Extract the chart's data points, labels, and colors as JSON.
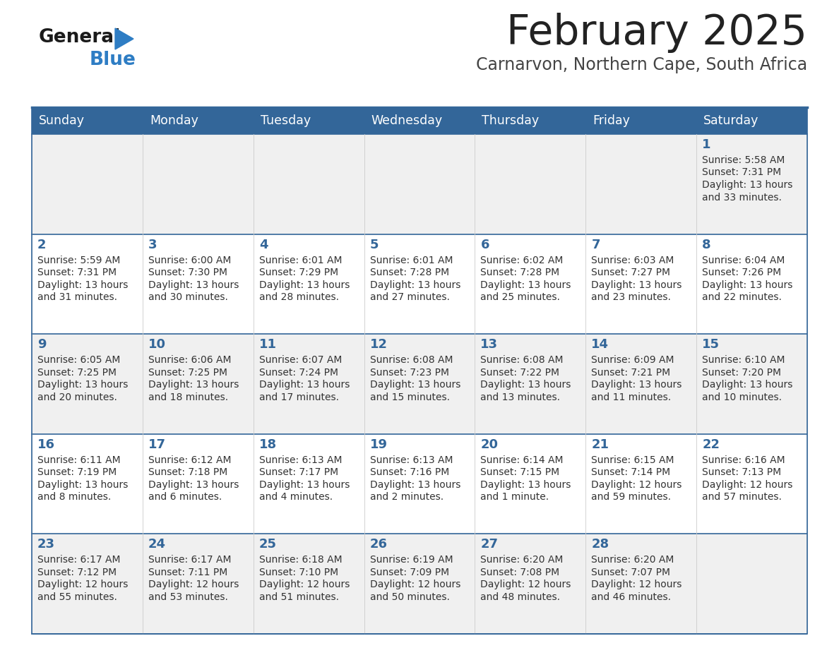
{
  "title": "February 2025",
  "subtitle": "Carnarvon, Northern Cape, South Africa",
  "header_bg": "#336699",
  "header_text": "#FFFFFF",
  "row_bg_odd": "#F0F0F0",
  "row_bg_even": "#FFFFFF",
  "day_number_color": "#336699",
  "cell_text_color": "#333333",
  "border_color": "#336699",
  "inner_border_color": "#CCCCCC",
  "days_of_week": [
    "Sunday",
    "Monday",
    "Tuesday",
    "Wednesday",
    "Thursday",
    "Friday",
    "Saturday"
  ],
  "title_color": "#222222",
  "subtitle_color": "#444444",
  "logo_general_color": "#1a1a1a",
  "logo_blue_color": "#2E7DC4",
  "calendar_data": [
    [
      null,
      null,
      null,
      null,
      null,
      null,
      {
        "day": "1",
        "sunrise": "5:58 AM",
        "sunset": "7:31 PM",
        "daylight_line1": "13 hours",
        "daylight_line2": "and 33 minutes."
      }
    ],
    [
      {
        "day": "2",
        "sunrise": "5:59 AM",
        "sunset": "7:31 PM",
        "daylight_line1": "13 hours",
        "daylight_line2": "and 31 minutes."
      },
      {
        "day": "3",
        "sunrise": "6:00 AM",
        "sunset": "7:30 PM",
        "daylight_line1": "13 hours",
        "daylight_line2": "and 30 minutes."
      },
      {
        "day": "4",
        "sunrise": "6:01 AM",
        "sunset": "7:29 PM",
        "daylight_line1": "13 hours",
        "daylight_line2": "and 28 minutes."
      },
      {
        "day": "5",
        "sunrise": "6:01 AM",
        "sunset": "7:28 PM",
        "daylight_line1": "13 hours",
        "daylight_line2": "and 27 minutes."
      },
      {
        "day": "6",
        "sunrise": "6:02 AM",
        "sunset": "7:28 PM",
        "daylight_line1": "13 hours",
        "daylight_line2": "and 25 minutes."
      },
      {
        "day": "7",
        "sunrise": "6:03 AM",
        "sunset": "7:27 PM",
        "daylight_line1": "13 hours",
        "daylight_line2": "and 23 minutes."
      },
      {
        "day": "8",
        "sunrise": "6:04 AM",
        "sunset": "7:26 PM",
        "daylight_line1": "13 hours",
        "daylight_line2": "and 22 minutes."
      }
    ],
    [
      {
        "day": "9",
        "sunrise": "6:05 AM",
        "sunset": "7:25 PM",
        "daylight_line1": "13 hours",
        "daylight_line2": "and 20 minutes."
      },
      {
        "day": "10",
        "sunrise": "6:06 AM",
        "sunset": "7:25 PM",
        "daylight_line1": "13 hours",
        "daylight_line2": "and 18 minutes."
      },
      {
        "day": "11",
        "sunrise": "6:07 AM",
        "sunset": "7:24 PM",
        "daylight_line1": "13 hours",
        "daylight_line2": "and 17 minutes."
      },
      {
        "day": "12",
        "sunrise": "6:08 AM",
        "sunset": "7:23 PM",
        "daylight_line1": "13 hours",
        "daylight_line2": "and 15 minutes."
      },
      {
        "day": "13",
        "sunrise": "6:08 AM",
        "sunset": "7:22 PM",
        "daylight_line1": "13 hours",
        "daylight_line2": "and 13 minutes."
      },
      {
        "day": "14",
        "sunrise": "6:09 AM",
        "sunset": "7:21 PM",
        "daylight_line1": "13 hours",
        "daylight_line2": "and 11 minutes."
      },
      {
        "day": "15",
        "sunrise": "6:10 AM",
        "sunset": "7:20 PM",
        "daylight_line1": "13 hours",
        "daylight_line2": "and 10 minutes."
      }
    ],
    [
      {
        "day": "16",
        "sunrise": "6:11 AM",
        "sunset": "7:19 PM",
        "daylight_line1": "13 hours",
        "daylight_line2": "and 8 minutes."
      },
      {
        "day": "17",
        "sunrise": "6:12 AM",
        "sunset": "7:18 PM",
        "daylight_line1": "13 hours",
        "daylight_line2": "and 6 minutes."
      },
      {
        "day": "18",
        "sunrise": "6:13 AM",
        "sunset": "7:17 PM",
        "daylight_line1": "13 hours",
        "daylight_line2": "and 4 minutes."
      },
      {
        "day": "19",
        "sunrise": "6:13 AM",
        "sunset": "7:16 PM",
        "daylight_line1": "13 hours",
        "daylight_line2": "and 2 minutes."
      },
      {
        "day": "20",
        "sunrise": "6:14 AM",
        "sunset": "7:15 PM",
        "daylight_line1": "13 hours",
        "daylight_line2": "and 1 minute."
      },
      {
        "day": "21",
        "sunrise": "6:15 AM",
        "sunset": "7:14 PM",
        "daylight_line1": "12 hours",
        "daylight_line2": "and 59 minutes."
      },
      {
        "day": "22",
        "sunrise": "6:16 AM",
        "sunset": "7:13 PM",
        "daylight_line1": "12 hours",
        "daylight_line2": "and 57 minutes."
      }
    ],
    [
      {
        "day": "23",
        "sunrise": "6:17 AM",
        "sunset": "7:12 PM",
        "daylight_line1": "12 hours",
        "daylight_line2": "and 55 minutes."
      },
      {
        "day": "24",
        "sunrise": "6:17 AM",
        "sunset": "7:11 PM",
        "daylight_line1": "12 hours",
        "daylight_line2": "and 53 minutes."
      },
      {
        "day": "25",
        "sunrise": "6:18 AM",
        "sunset": "7:10 PM",
        "daylight_line1": "12 hours",
        "daylight_line2": "and 51 minutes."
      },
      {
        "day": "26",
        "sunrise": "6:19 AM",
        "sunset": "7:09 PM",
        "daylight_line1": "12 hours",
        "daylight_line2": "and 50 minutes."
      },
      {
        "day": "27",
        "sunrise": "6:20 AM",
        "sunset": "7:08 PM",
        "daylight_line1": "12 hours",
        "daylight_line2": "and 48 minutes."
      },
      {
        "day": "28",
        "sunrise": "6:20 AM",
        "sunset": "7:07 PM",
        "daylight_line1": "12 hours",
        "daylight_line2": "and 46 minutes."
      },
      null
    ]
  ]
}
